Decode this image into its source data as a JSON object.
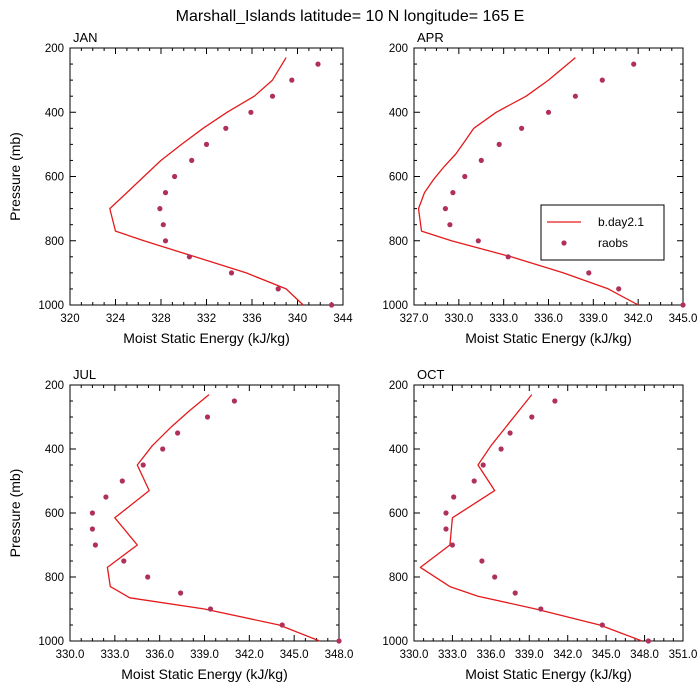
{
  "figure": {
    "title": "Marshall_Islands  latitude= 10 N longitude= 165 E"
  },
  "colors": {
    "model_line": "#e41a1c",
    "raobs_marker": "#b0305a",
    "axis": "#000000"
  },
  "legend": {
    "panel": 1,
    "placement": "inside right, lower-middle",
    "entries": [
      {
        "label": "b.day2.1",
        "kind": "line"
      },
      {
        "label": "raobs",
        "kind": "marker"
      }
    ]
  },
  "chart_data": [
    {
      "type": "line",
      "panel_label": "JAN",
      "xlabel": "Moist Static Energy (kJ/kg)",
      "ylabel": "Pressure (mb)",
      "xlim": [
        320,
        344
      ],
      "ylim": [
        1000,
        200
      ],
      "y_inverted": true,
      "xticks": [
        "320",
        "324",
        "328",
        "332",
        "336",
        "340",
        "344"
      ],
      "yticks": [
        "200",
        "400",
        "600",
        "800",
        "1000"
      ],
      "series": [
        {
          "name": "b.day2.1",
          "kind": "line",
          "pressure": [
            1000,
            950,
            900,
            850,
            800,
            770,
            700,
            650,
            600,
            550,
            500,
            450,
            400,
            350,
            300,
            230
          ],
          "mse": [
            340.5,
            339.0,
            335.5,
            331.0,
            326.5,
            324.0,
            323.5,
            325.0,
            326.5,
            328.0,
            329.8,
            331.7,
            333.8,
            336.2,
            337.8,
            339.0
          ]
        },
        {
          "name": "raobs",
          "kind": "marker",
          "pressure": [
            1000,
            950,
            900,
            850,
            800,
            750,
            700,
            650,
            600,
            550,
            500,
            450,
            400,
            350,
            300,
            250
          ],
          "mse": [
            343.0,
            338.3,
            334.2,
            330.5,
            328.4,
            328.2,
            327.9,
            328.4,
            329.2,
            330.7,
            332.0,
            333.7,
            335.9,
            337.8,
            339.5,
            341.8
          ]
        }
      ]
    },
    {
      "type": "line",
      "panel_label": "APR",
      "xlabel": "Moist Static Energy (kJ/kg)",
      "ylabel": "",
      "xlim": [
        327,
        345
      ],
      "ylim": [
        1000,
        200
      ],
      "y_inverted": true,
      "xticks": [
        "327.0",
        "330.0",
        "333.0",
        "336.0",
        "339.0",
        "342.0",
        "345.0"
      ],
      "yticks": [
        "200",
        "400",
        "600",
        "800",
        "1000"
      ],
      "series": [
        {
          "name": "b.day2.1",
          "kind": "line",
          "pressure": [
            1000,
            950,
            900,
            850,
            800,
            770,
            700,
            650,
            610,
            570,
            530,
            490,
            450,
            400,
            350,
            300,
            230
          ],
          "mse": [
            342.0,
            340.0,
            337.0,
            333.5,
            329.5,
            327.5,
            327.3,
            327.7,
            328.3,
            329.0,
            329.8,
            330.4,
            331.0,
            332.5,
            334.5,
            336.0,
            337.8
          ]
        },
        {
          "name": "raobs",
          "kind": "marker",
          "pressure": [
            1000,
            950,
            900,
            850,
            800,
            750,
            700,
            650,
            600,
            550,
            500,
            450,
            400,
            350,
            300,
            250
          ],
          "mse": [
            345.0,
            340.7,
            338.7,
            333.3,
            331.3,
            329.4,
            329.1,
            329.6,
            330.4,
            331.5,
            332.7,
            334.2,
            336.0,
            337.8,
            339.6,
            341.7
          ]
        }
      ]
    },
    {
      "type": "line",
      "panel_label": "JUL",
      "xlabel": "Moist Static Energy (kJ/kg)",
      "ylabel": "Pressure (mb)",
      "xlim": [
        330,
        348
      ],
      "ylim": [
        1000,
        200
      ],
      "y_inverted": true,
      "xticks": [
        "330.0",
        "333.0",
        "336.0",
        "339.0",
        "342.0",
        "345.0",
        "348.0"
      ],
      "yticks": [
        "200",
        "400",
        "600",
        "800",
        "1000"
      ],
      "series": [
        {
          "name": "b.day2.1",
          "kind": "line",
          "pressure": [
            1000,
            950,
            900,
            865,
            830,
            770,
            700,
            615,
            530,
            450,
            390,
            330,
            280,
            230
          ],
          "mse": [
            346.7,
            344.0,
            339.0,
            334.0,
            332.7,
            332.5,
            334.5,
            333.0,
            335.3,
            334.5,
            335.5,
            336.8,
            338.0,
            339.3
          ]
        },
        {
          "name": "raobs",
          "kind": "marker",
          "pressure": [
            1000,
            950,
            900,
            850,
            800,
            750,
            700,
            650,
            600,
            550,
            500,
            450,
            400,
            350,
            300,
            250
          ],
          "mse": [
            348.0,
            344.2,
            339.4,
            337.4,
            335.2,
            333.6,
            331.7,
            331.5,
            331.5,
            332.4,
            333.5,
            334.9,
            336.2,
            337.2,
            339.2,
            341.0
          ]
        }
      ]
    },
    {
      "type": "line",
      "panel_label": "OCT",
      "xlabel": "Moist Static Energy (kJ/kg)",
      "ylabel": "",
      "xlim": [
        330,
        351
      ],
      "ylim": [
        1000,
        200
      ],
      "y_inverted": true,
      "xticks": [
        "330.0",
        "333.0",
        "336.0",
        "339.0",
        "342.0",
        "345.0",
        "348.0",
        "351.0"
      ],
      "yticks": [
        "200",
        "400",
        "600",
        "800",
        "1000"
      ],
      "series": [
        {
          "name": "b.day2.1",
          "kind": "line",
          "pressure": [
            1000,
            950,
            900,
            860,
            830,
            770,
            700,
            615,
            530,
            450,
            390,
            330,
            280,
            230
          ],
          "mse": [
            347.8,
            344.5,
            339.5,
            335.0,
            332.8,
            330.5,
            332.8,
            333.0,
            336.3,
            335.0,
            336.0,
            337.2,
            338.2,
            339.2
          ]
        },
        {
          "name": "raobs",
          "kind": "marker",
          "pressure": [
            1000,
            950,
            900,
            850,
            800,
            750,
            700,
            650,
            600,
            550,
            500,
            450,
            400,
            350,
            300,
            250
          ],
          "mse": [
            348.3,
            344.7,
            339.9,
            337.9,
            336.3,
            335.3,
            333.0,
            332.5,
            332.5,
            333.1,
            334.7,
            335.4,
            336.8,
            337.5,
            339.2,
            341.0
          ]
        }
      ]
    }
  ]
}
